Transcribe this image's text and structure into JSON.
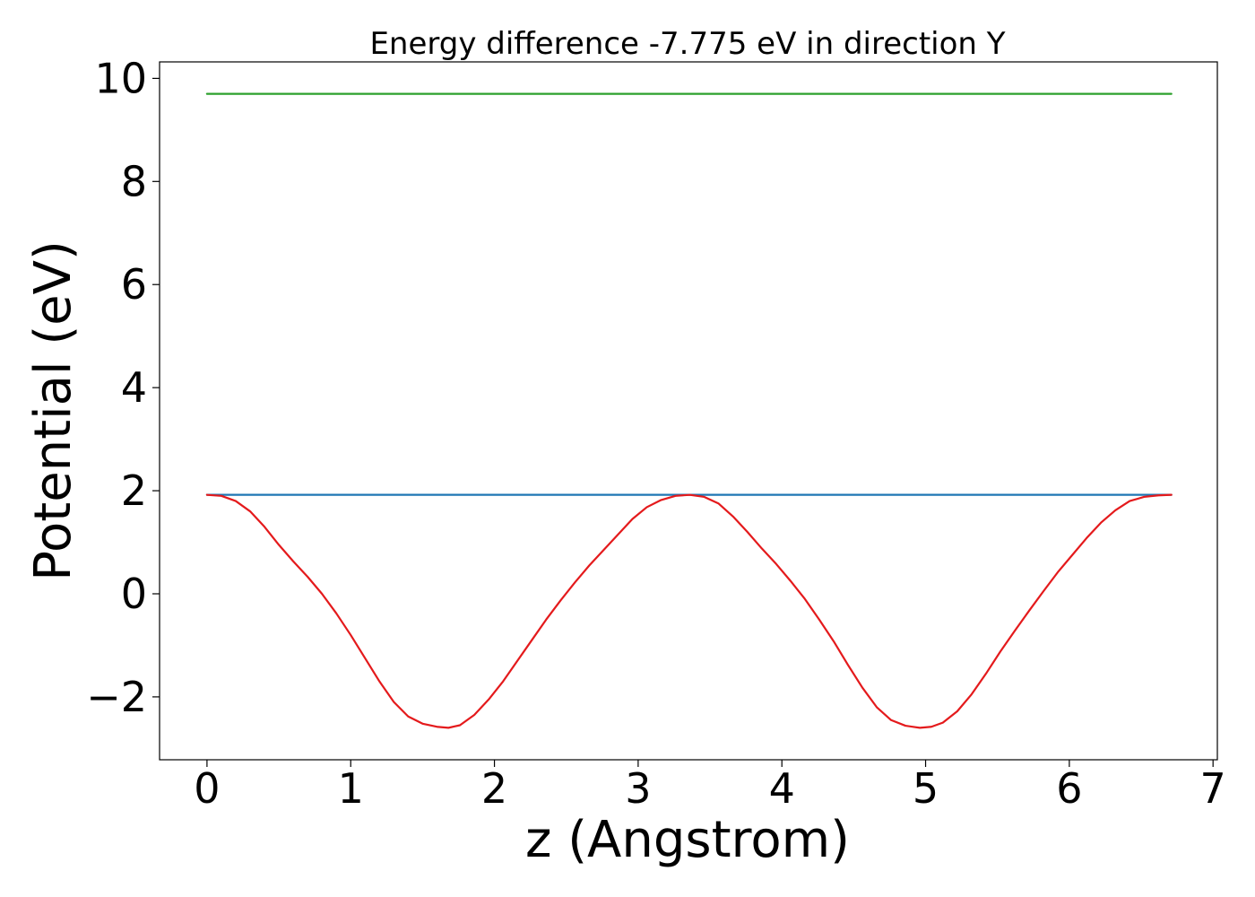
{
  "chart_data": {
    "type": "line",
    "title": "Energy difference -7.775 eV in direction Y",
    "xlabel": "z (Angstrom)",
    "ylabel": "Potential (eV)",
    "xlim": [
      -0.33,
      7.03
    ],
    "ylim": [
      -3.22,
      10.32
    ],
    "xticks": [
      0,
      1,
      2,
      3,
      4,
      5,
      6,
      7
    ],
    "xtick_labels": [
      "0",
      "1",
      "2",
      "3",
      "4",
      "5",
      "6",
      "7"
    ],
    "yticks": [
      -2,
      0,
      2,
      4,
      6,
      8,
      10
    ],
    "ytick_labels": [
      "−2",
      "0",
      "2",
      "4",
      "6",
      "8",
      "10"
    ],
    "grid": false,
    "legend": "none",
    "series": [
      {
        "color": "#2ca02c",
        "x": [
          0,
          6.71
        ],
        "y": [
          9.7,
          9.7
        ]
      },
      {
        "color": "#1f77b4",
        "x": [
          0,
          6.71
        ],
        "y": [
          1.92,
          1.92
        ]
      },
      {
        "color": "#e41a1c",
        "x": [
          0,
          0.1,
          0.2,
          0.3,
          0.4,
          0.5,
          0.6,
          0.7,
          0.8,
          0.9,
          1.0,
          1.1,
          1.2,
          1.3,
          1.4,
          1.5,
          1.6,
          1.68,
          1.76,
          1.86,
          1.96,
          2.06,
          2.16,
          2.26,
          2.36,
          2.46,
          2.56,
          2.66,
          2.76,
          2.86,
          2.96,
          3.06,
          3.16,
          3.26,
          3.36,
          3.46,
          3.56,
          3.66,
          3.76,
          3.86,
          3.96,
          4.06,
          4.16,
          4.26,
          4.36,
          4.46,
          4.56,
          4.66,
          4.76,
          4.86,
          4.96,
          5.04,
          5.12,
          5.22,
          5.32,
          5.42,
          5.52,
          5.62,
          5.72,
          5.82,
          5.92,
          6.02,
          6.12,
          6.22,
          6.32,
          6.42,
          6.52,
          6.62,
          6.71
        ],
        "y": [
          1.92,
          1.9,
          1.8,
          1.6,
          1.3,
          0.95,
          0.63,
          0.33,
          0.0,
          -0.38,
          -0.8,
          -1.25,
          -1.7,
          -2.1,
          -2.38,
          -2.52,
          -2.58,
          -2.6,
          -2.55,
          -2.35,
          -2.05,
          -1.7,
          -1.3,
          -0.9,
          -0.5,
          -0.13,
          0.22,
          0.55,
          0.85,
          1.15,
          1.45,
          1.68,
          1.82,
          1.9,
          1.92,
          1.88,
          1.75,
          1.5,
          1.2,
          0.88,
          0.58,
          0.25,
          -0.1,
          -0.5,
          -0.92,
          -1.38,
          -1.82,
          -2.2,
          -2.45,
          -2.56,
          -2.6,
          -2.58,
          -2.5,
          -2.28,
          -1.95,
          -1.55,
          -1.12,
          -0.72,
          -0.33,
          0.05,
          0.42,
          0.75,
          1.08,
          1.38,
          1.62,
          1.8,
          1.88,
          1.91,
          1.92
        ]
      }
    ]
  }
}
